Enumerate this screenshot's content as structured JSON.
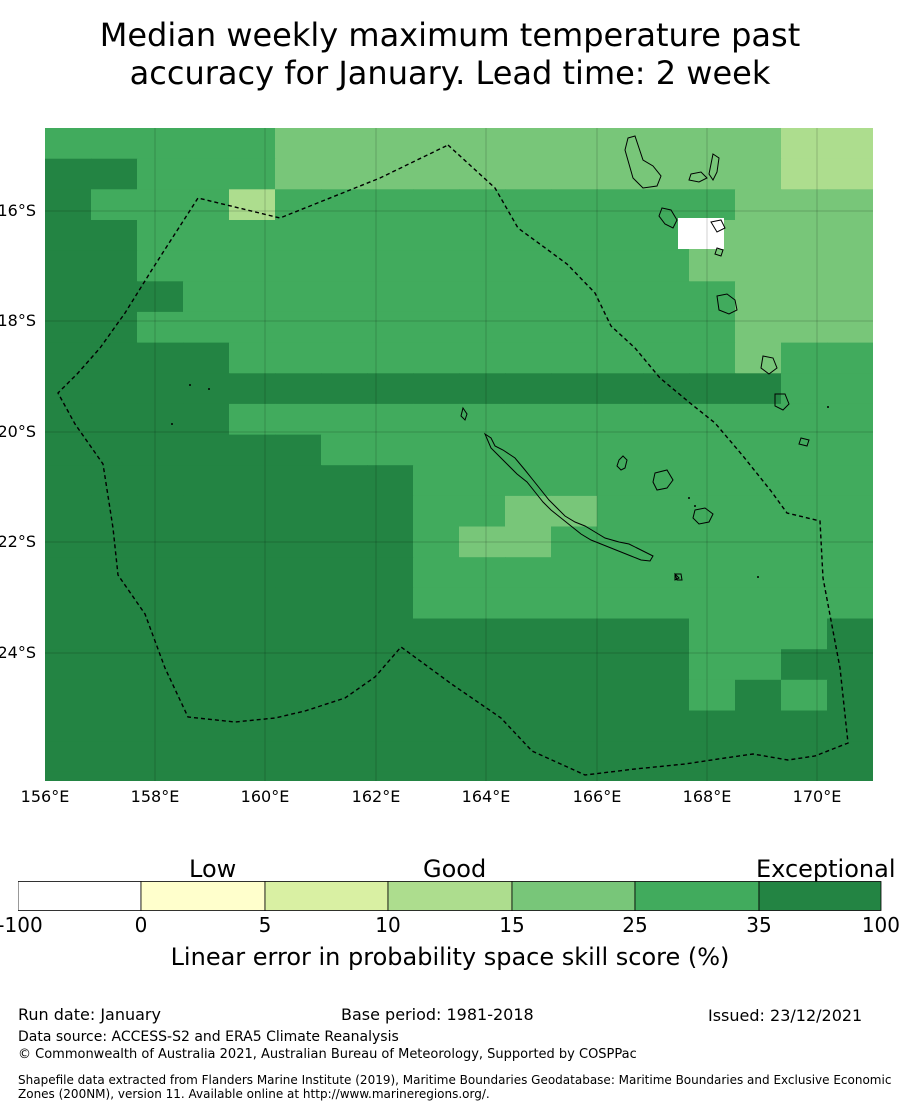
{
  "title_line1": "Median weekly maximum temperature past",
  "title_line2": "accuracy for January. Lead time: 2 week",
  "colors": {
    "c0": "#ffffff",
    "c1": "#ffffcc",
    "c2": "#d9f0a3",
    "c3": "#addd8e",
    "c4": "#78c679",
    "c5": "#41ab5d",
    "c6": "#238443"
  },
  "map": {
    "lon_range": [
      156.0,
      171.0
    ],
    "lat_range": [
      -26.0,
      -14.5
    ],
    "lat_labels": [
      "16°S",
      "18°S",
      "20°S",
      "22°S",
      "24°S"
    ],
    "lon_labels": [
      "156°E",
      "158°E",
      "160°E",
      "162°E",
      "164°E",
      "166°E",
      "168°E",
      "170°E"
    ],
    "grid": [
      "55555444444444443334",
      "66555444444444443335",
      "65553555555555544454",
      "66555555555555444454",
      "66555555555555444454",
      "66655555555555544445",
      "66555555555555544455",
      "66665555555555545555",
      "66666666666666665555",
      "66665555555555555555",
      "66666655555555555565",
      "66666666555555555555",
      "66666666554455555555",
      "66666666544555555556",
      "66666666555555555566",
      "66666666555555555556",
      "66666666666666555656",
      "66666666666666556666",
      "66666666666666565666",
      "66666666666666666666",
      "66666666666666666666",
      "66666666666666666666"
    ]
  },
  "colorbar": {
    "categories": [
      "Low",
      "Good",
      "Exceptional"
    ],
    "ticks": [
      "-100",
      "0",
      "5",
      "10",
      "15",
      "25",
      "35",
      "100"
    ],
    "label": "Linear error in probability space skill score (%)"
  },
  "footer": {
    "run_date": "Run date: January",
    "base_period": "Base period: 1981-2018",
    "issued": "Issued: 23/12/2021",
    "data_source": "Data source: ACCESS-S2 and ERA5 Climate Reanalysis",
    "copyright": "© Commonwealth of Australia 2021, Australian Bureau of Meteorology, Supported by COSPPac",
    "shapefile1": "Shapefile data extracted from Flanders Marine Institute (2019), Maritime Boundaries Geodatabase: Maritime Boundaries and Exclusive Economic",
    "shapefile2": "Zones (200NM), version 11. Available online at http://www.marineregions.org/."
  }
}
